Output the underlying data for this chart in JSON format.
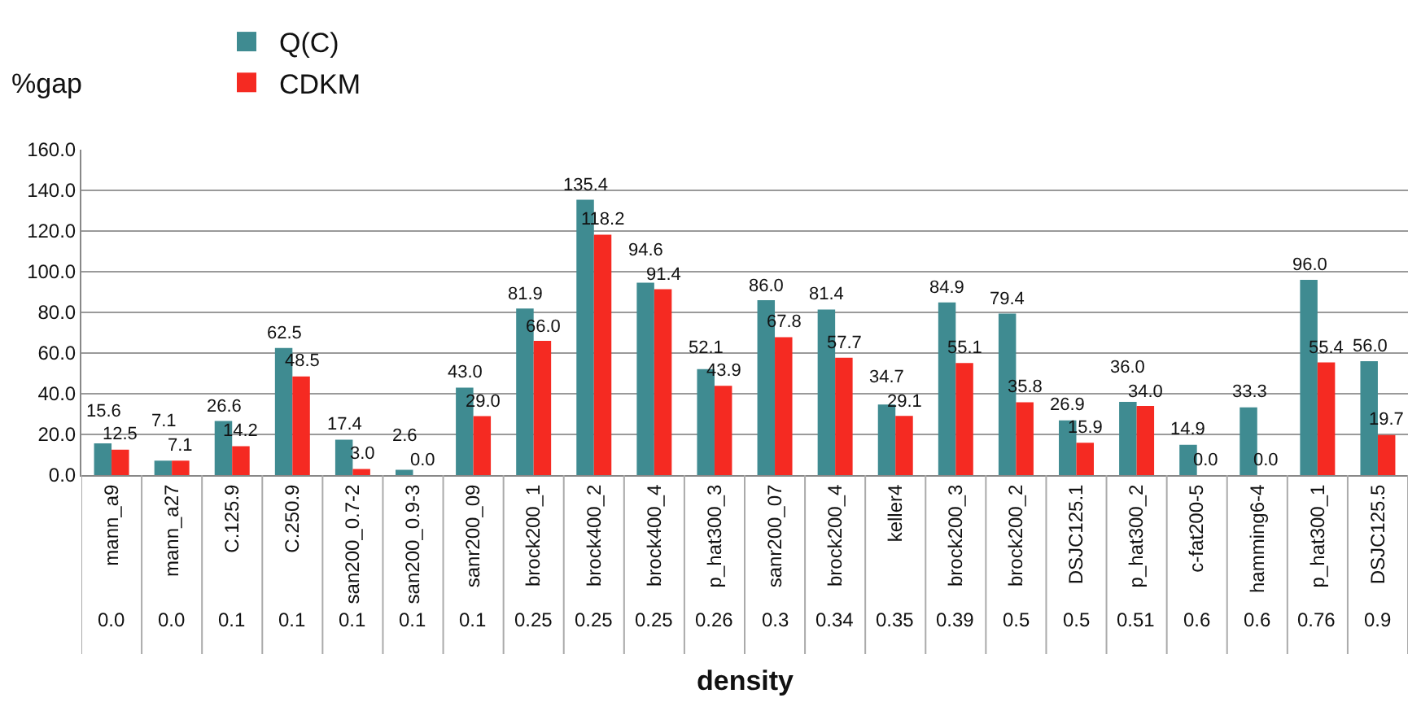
{
  "chart_data": {
    "type": "bar",
    "ylabel": "%gap",
    "xlabel": "density",
    "categories": [
      "mann_a9",
      "mann_a27",
      "C.125.9",
      "C.250.9",
      "san200_0.7-2",
      "san200_0.9-3",
      "sanr200_09",
      "brock200_1",
      "brock400_2",
      "brock400_4",
      "p_hat300_3",
      "sanr200_07",
      "brock200_4",
      "keller4",
      "brock200_3",
      "brock200_2",
      "DSJC125.1",
      "p_hat300_2",
      "c-fat200-5",
      "hamming6-4",
      "p_hat300_1",
      "DSJC125.5"
    ],
    "series": [
      {
        "name": "Q(C)",
        "color": "#3f8b91",
        "values": [
          15.6,
          7.1,
          26.6,
          62.5,
          17.4,
          2.6,
          43.0,
          81.9,
          135.4,
          94.6,
          52.1,
          86.0,
          81.4,
          34.7,
          84.9,
          79.4,
          26.9,
          36.0,
          14.9,
          33.3,
          96.0,
          56.0
        ],
        "value_labels": [
          "15.6",
          "7.1",
          "26.6",
          "62.5",
          "17.4",
          "2.6",
          "43.0",
          "81.9",
          "135.4",
          "94.6",
          "52.1",
          "86.0",
          "81.4",
          "34.7",
          "84.9",
          "79.4",
          "26.9",
          "36.0",
          "14.9",
          "33.3",
          "96.0",
          "56.0"
        ]
      },
      {
        "name": "CDKM",
        "color": "#f52a22",
        "values": [
          12.5,
          7.1,
          14.2,
          48.5,
          3.0,
          0.0,
          29.0,
          66.0,
          118.2,
          91.4,
          43.9,
          67.8,
          57.7,
          29.1,
          55.1,
          35.8,
          15.9,
          34.0,
          0.0,
          0.0,
          55.4,
          19.7
        ],
        "value_labels": [
          "12.5",
          "7.1",
          "14.2",
          "48.5",
          "3.0",
          "0.0",
          "29.0",
          "66.0",
          "118.2",
          "91.4",
          "43.9",
          "67.8",
          "57.7",
          "29.1",
          "55.1",
          "35.8",
          "15.9",
          "34.0",
          "0.0",
          "0.0",
          "55.4",
          "19.7"
        ]
      }
    ],
    "ylim": [
      0,
      160
    ],
    "yticks": [
      {
        "value": 0,
        "label": "0.0"
      },
      {
        "value": 20,
        "label": "20.0"
      },
      {
        "value": 40,
        "label": "40.0"
      },
      {
        "value": 60,
        "label": "60.0"
      },
      {
        "value": 80,
        "label": "80.0"
      },
      {
        "value": 100,
        "label": "100.0"
      },
      {
        "value": 120,
        "label": "120.0"
      },
      {
        "value": 140,
        "label": "140.0"
      },
      {
        "value": 160,
        "label": "160.0"
      }
    ],
    "grid": "y",
    "legend": "top left",
    "annotations": [
      "0.0",
      "0.0",
      "0.1",
      "0.1",
      "0.1",
      "0.1",
      "0.1",
      "0.25",
      "0.25",
      "0.25",
      "0.26",
      "0.3",
      "0.34",
      "0.35",
      "0.39",
      "0.5",
      "0.5",
      "0.51",
      "0.6",
      "0.6",
      "0.76",
      "0.9"
    ]
  }
}
